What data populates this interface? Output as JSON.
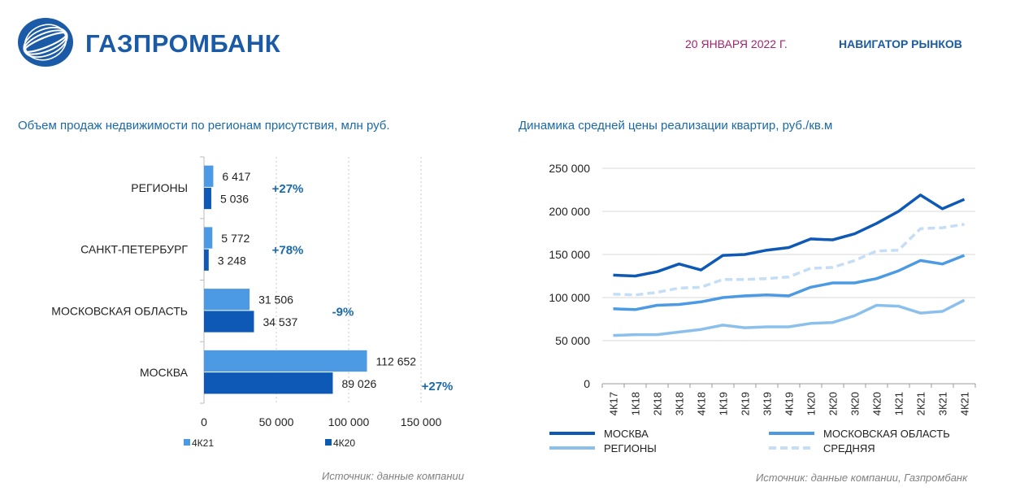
{
  "header": {
    "brand": "ГАЗПРОМБАНК",
    "date": "20 ЯНВАРЯ 2022 Г.",
    "section": "НАВИГАТОР РЫНКОВ",
    "logo_icon": "globe-logo-icon"
  },
  "colors": {
    "brand_blue": "#1a5aa6",
    "date_magenta": "#a2236e",
    "bar_4k21": "#4b9ae3",
    "bar_4k20": "#0d59b5",
    "growth_label": "#1a6aa8",
    "moscow_line": "#0d59b5",
    "mo_line": "#4b9ae3",
    "regions_line": "#8cc0ec",
    "avg_line": "#c5def5"
  },
  "chart_data": [
    {
      "type": "bar",
      "orientation": "horizontal",
      "title": "Объем продаж недвижимости по регионам присутствия, млн руб.",
      "categories": [
        "РЕГИОНЫ",
        "САНКТ-ПЕТЕРБУРГ",
        "МОСКОВСКАЯ ОБЛАСТЬ",
        "МОСКВА"
      ],
      "series": [
        {
          "name": "4К21",
          "values": [
            6417,
            5772,
            31506,
            112652
          ],
          "labels": [
            "6 417",
            "5 772",
            "31 506",
            "112 652"
          ]
        },
        {
          "name": "4К20",
          "values": [
            5036,
            3248,
            34537,
            89026
          ],
          "labels": [
            "5 036",
            "3 248",
            "34 537",
            "89 026"
          ]
        }
      ],
      "growth_labels": [
        "+27%",
        "+78%",
        "-9%",
        "+27%"
      ],
      "xlim": [
        0,
        150000
      ],
      "xticks": [
        0,
        50000,
        100000,
        150000
      ],
      "xtick_labels": [
        "0",
        "50 000",
        "100 000",
        "150 000"
      ],
      "grid": "vertical dotted",
      "legend": "bottom",
      "source": "Источник: данные компании"
    },
    {
      "type": "line",
      "title": "Динамика средней цены реализации квартир, руб./кв.м",
      "categories": [
        "4К17",
        "1К18",
        "2К18",
        "3К18",
        "4К18",
        "1К19",
        "2К19",
        "3К19",
        "4К19",
        "1К20",
        "2К20",
        "3К20",
        "4К20",
        "1К21",
        "2К21",
        "3К21",
        "4К21"
      ],
      "series": [
        {
          "name": "МОСКВА",
          "values": [
            126000,
            125000,
            130000,
            139000,
            132000,
            149000,
            150000,
            155000,
            158000,
            168000,
            167000,
            174000,
            186000,
            200000,
            219000,
            203000,
            214000
          ]
        },
        {
          "name": "МОСКОВСКАЯ ОБЛАСТЬ",
          "values": [
            87000,
            86000,
            91000,
            92000,
            95000,
            100000,
            102000,
            103000,
            102000,
            112000,
            117000,
            117000,
            122000,
            131000,
            143000,
            139000,
            149000
          ]
        },
        {
          "name": "РЕГИОНЫ",
          "values": [
            56000,
            57000,
            57000,
            60000,
            63000,
            68000,
            65000,
            66000,
            66000,
            70000,
            71000,
            79000,
            91000,
            90000,
            82000,
            84000,
            97000
          ]
        },
        {
          "name": "СРЕДНЯЯ",
          "values": [
            104000,
            103000,
            106000,
            111000,
            112000,
            121000,
            121000,
            122000,
            124000,
            134000,
            135000,
            143000,
            154000,
            155000,
            180000,
            181000,
            185000
          ]
        }
      ],
      "ylim": [
        0,
        250000
      ],
      "yticks": [
        0,
        50000,
        100000,
        150000,
        200000,
        250000
      ],
      "ytick_labels": [
        "0",
        "50 000",
        "100 000",
        "150 000",
        "200 000",
        "250 000"
      ],
      "grid": "horizontal",
      "legend": "bottom",
      "source": "Источник: данные компании, Газпромбанк"
    }
  ]
}
